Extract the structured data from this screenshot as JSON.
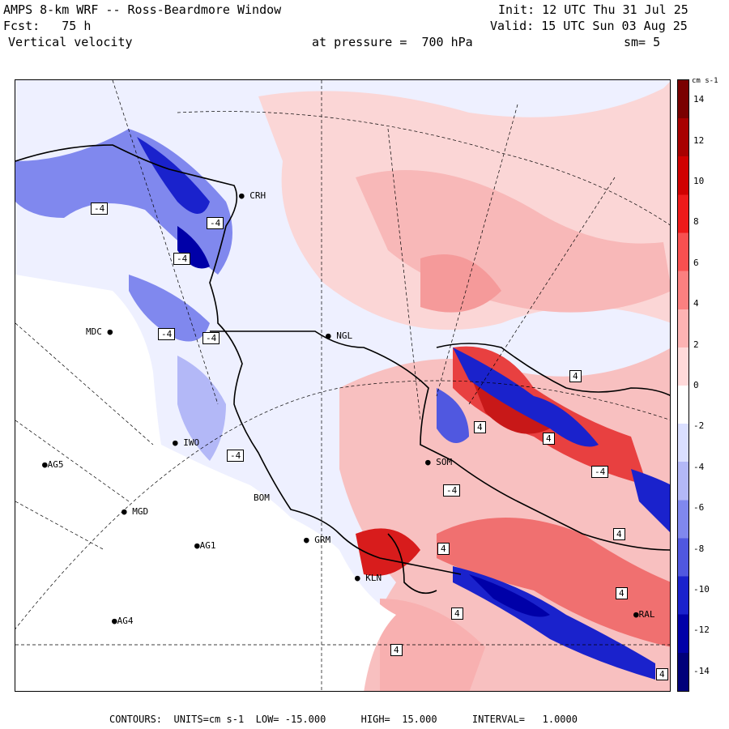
{
  "header": {
    "title": "AMPS 8-km WRF -- Ross-Beardmore Window",
    "init": "Init: 12 UTC Thu 31 Jul 25",
    "forecast": "Fcst:   75 h",
    "valid": "Valid: 15 UTC Sun 03 Aug 25",
    "field": "Vertical velocity",
    "level": "at pressure =  700 hPa",
    "smoothing": "sm= 5"
  },
  "colorbar": {
    "unit_label": "cm s-1",
    "ticks": [
      "14",
      "12",
      "10",
      "8",
      "6",
      "4",
      "2",
      "0",
      "-2",
      "-4",
      "-6",
      "-8",
      "-10",
      "-12",
      "-14"
    ],
    "range": [
      -15,
      15
    ],
    "colors_top_to_bottom": [
      "#7a0000",
      "#a80000",
      "#d00000",
      "#ee1a1a",
      "#f85050",
      "#fb8080",
      "#fdb3b3",
      "#ffdada",
      "#ffffff",
      "#dadfff",
      "#b3b8f7",
      "#8088ee",
      "#5058e0",
      "#1a22cc",
      "#0000a8",
      "#00007a"
    ]
  },
  "stations": [
    {
      "id": "CRH",
      "label": "CRH"
    },
    {
      "id": "MDC",
      "label": "MDC"
    },
    {
      "id": "NGL",
      "label": "NGL"
    },
    {
      "id": "IWO",
      "label": "IWO"
    },
    {
      "id": "AG5",
      "label": "AG5"
    },
    {
      "id": "SOM",
      "label": "SOM"
    },
    {
      "id": "MGD",
      "label": "MGD"
    },
    {
      "id": "AG1",
      "label": "AG1"
    },
    {
      "id": "GRM",
      "label": "GRM"
    },
    {
      "id": "KLN",
      "label": "KLN"
    },
    {
      "id": "AG4",
      "label": "AG4"
    },
    {
      "id": "BOM",
      "label": "BOM"
    },
    {
      "id": "RAL",
      "label": "RAL"
    }
  ],
  "contour_labels": [
    "-4",
    "-4",
    "-4",
    "-4",
    "-4",
    "-4",
    "-4",
    "-4",
    "4",
    "4",
    "4",
    "4",
    "4",
    "4",
    "4",
    "4",
    "4"
  ],
  "footer": {
    "text": "CONTOURS:  UNITS=cm s-1  LOW= -15.000      HIGH=  15.000      INTERVAL=   1.0000"
  }
}
